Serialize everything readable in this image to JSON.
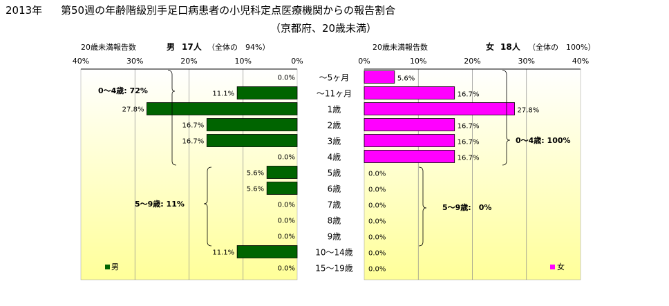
{
  "title": {
    "year": "2013年",
    "line1": "第50週の年齢階級別手足口病患者の小児科定点医療機関からの報告割合",
    "line2": "（京都府、20歳未満）"
  },
  "left_panel": {
    "subtitle_label": "20歳未満報告数",
    "subtitle_sex": "男",
    "subtitle_count": "17人",
    "subtitle_share": "（全体の　94%）",
    "legend": "男",
    "group_notes": [
      "0〜4歳: 72%",
      "5〜9歳: 11%"
    ]
  },
  "right_panel": {
    "subtitle_label": "20歳未満報告数",
    "subtitle_sex": "女",
    "subtitle_count": "18人",
    "subtitle_share": "（全体の　100%）",
    "legend": "女",
    "group_notes": [
      "0〜4歳: 100%",
      "5〜9歳:　0%"
    ]
  },
  "colors": {
    "male": "#006400",
    "female": "#ff00ff",
    "bg_top": "#ffffff",
    "bg_bottom": "#ffff99"
  },
  "chart_data": {
    "type": "bar",
    "orientation": "horizontal",
    "categories": [
      "〜5ヶ月",
      "〜11ヶ月",
      "1歳",
      "2歳",
      "3歳",
      "4歳",
      "5歳",
      "6歳",
      "7歳",
      "8歳",
      "9歳",
      "10〜14歳",
      "15〜19歳"
    ],
    "series": [
      {
        "name": "男",
        "values": [
          0.0,
          11.1,
          27.8,
          16.7,
          16.7,
          0.0,
          5.6,
          5.6,
          0.0,
          0.0,
          0.0,
          11.1,
          0.0
        ]
      },
      {
        "name": "女",
        "values": [
          5.6,
          16.7,
          27.8,
          16.7,
          16.7,
          16.7,
          0.0,
          0.0,
          0.0,
          0.0,
          0.0,
          0.0,
          0.0
        ]
      }
    ],
    "value_labels": {
      "男": [
        "0.0%",
        "11.1%",
        "27.8%",
        "16.7%",
        "16.7%",
        "0.0%",
        "5.6%",
        "5.6%",
        "0.0%",
        "0.0%",
        "0.0%",
        "11.1%",
        "0.0%"
      ],
      "女": [
        "5.6%",
        "16.7%",
        "27.8%",
        "16.7%",
        "16.7%",
        "16.7%",
        "0.0%",
        "0.0%",
        "0.0%",
        "0.0%",
        "0.0%",
        "0.0%",
        "0.0%"
      ]
    },
    "left_axis_ticks": [
      "40%",
      "30%",
      "20%",
      "10%",
      "0%"
    ],
    "right_axis_ticks": [
      "0%",
      "10%",
      "20%",
      "30%",
      "40%"
    ],
    "xlim": [
      0,
      40
    ],
    "grid": true,
    "legend_position": "bottom"
  }
}
